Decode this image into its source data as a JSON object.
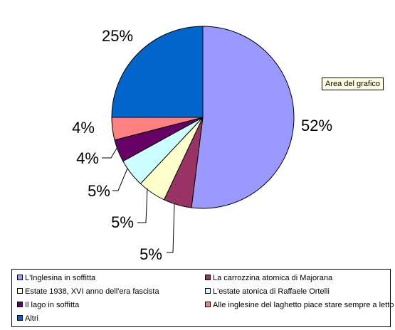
{
  "tooltip": "Area del grafico",
  "chart_data": {
    "type": "pie",
    "title": "",
    "slices": [
      {
        "name": "L'Inglesina in soffitta",
        "value": 52,
        "label": "52%",
        "color": "#9999ff"
      },
      {
        "name": "La carrozzina atomica di Majorana",
        "value": 5,
        "label": "5%",
        "color": "#993366"
      },
      {
        "name": "Estate 1938, XVI anno dell'era fascista",
        "value": 5,
        "label": "5%",
        "color": "#ffffcc"
      },
      {
        "name": "L'estate atonica di Raffaele Ortelli",
        "value": 5,
        "label": "5%",
        "color": "#ccffff"
      },
      {
        "name": "Il lago in soffitta",
        "value": 4,
        "label": "4%",
        "color": "#660066"
      },
      {
        "name": "Alle inglesine del laghetto piace stare sempre a letto",
        "value": 4,
        "label": "4%",
        "color": "#ff8080"
      },
      {
        "name": "Altri",
        "value": 25,
        "label": "25%",
        "color": "#0066cc"
      }
    ],
    "legend": "bottom"
  }
}
